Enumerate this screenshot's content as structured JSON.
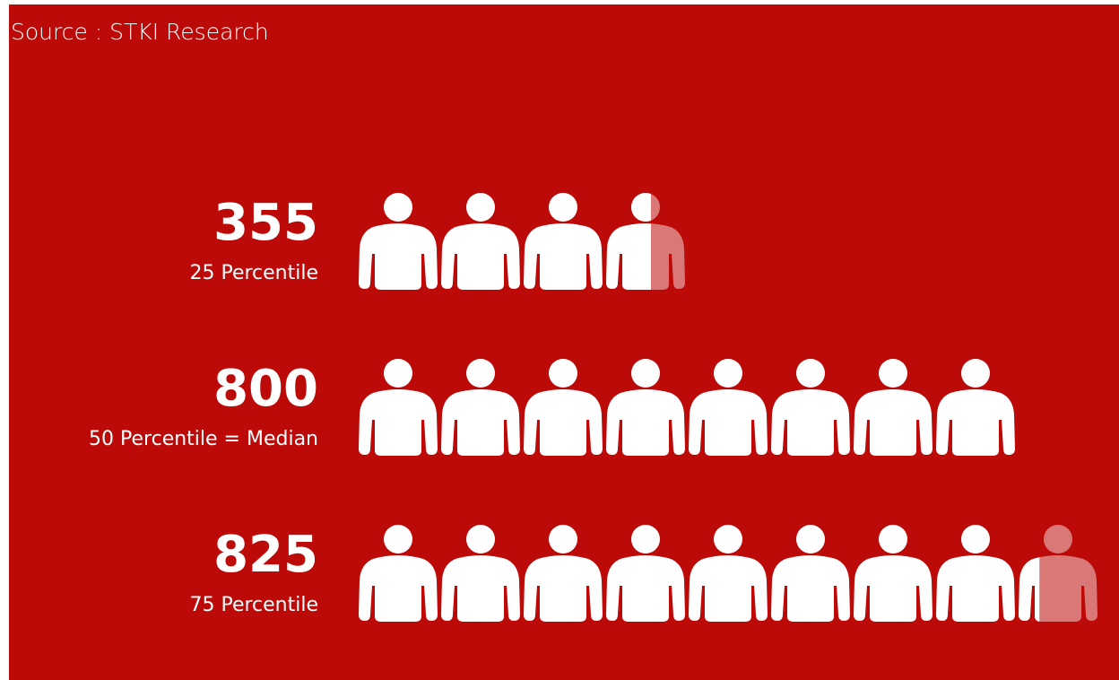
{
  "chart_data": {
    "type": "pictogram",
    "source": "Source : STKI Research",
    "categories": [
      "25 Percentile",
      "50 Percentile = Median",
      "75 Percentile"
    ],
    "values": [
      355,
      800,
      825
    ],
    "color": "#ffffff",
    "background": "#bb0a08"
  }
}
